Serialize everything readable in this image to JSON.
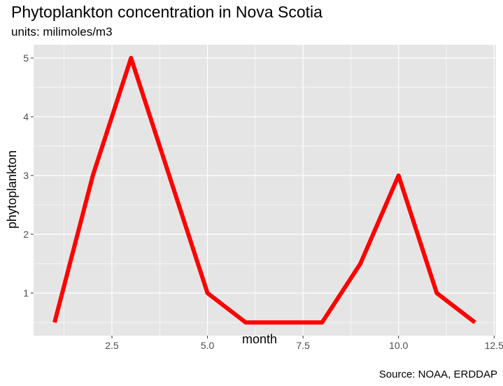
{
  "chart_data": {
    "type": "line",
    "title": "Phytoplankton concentration in Nova Scotia",
    "subtitle": "units: milimoles/m3",
    "caption": "Source: NOAA, ERDDAP",
    "xlabel": "month",
    "ylabel": "phytoplankton",
    "x": [
      1,
      2,
      3,
      4,
      5,
      6,
      7,
      8,
      9,
      10,
      11,
      12
    ],
    "y": [
      0.5,
      3,
      5,
      3,
      1,
      0.5,
      0.5,
      0.5,
      1.5,
      3,
      1,
      0.5
    ],
    "xlim": [
      0.45,
      12.55
    ],
    "ylim": [
      0.275,
      5.225
    ],
    "xticks": [
      2.5,
      5.0,
      7.5,
      10.0,
      12.5
    ],
    "xtick_labels": [
      "2.5",
      "5.0",
      "7.5",
      "10.0",
      "12.5"
    ],
    "yticks": [
      1,
      2,
      3,
      4,
      5
    ],
    "ytick_labels": [
      "1",
      "2",
      "3",
      "4",
      "5"
    ],
    "line_color": "#ff0000",
    "panel_background": "#e5e5e5",
    "grid": true,
    "legend": "none"
  }
}
